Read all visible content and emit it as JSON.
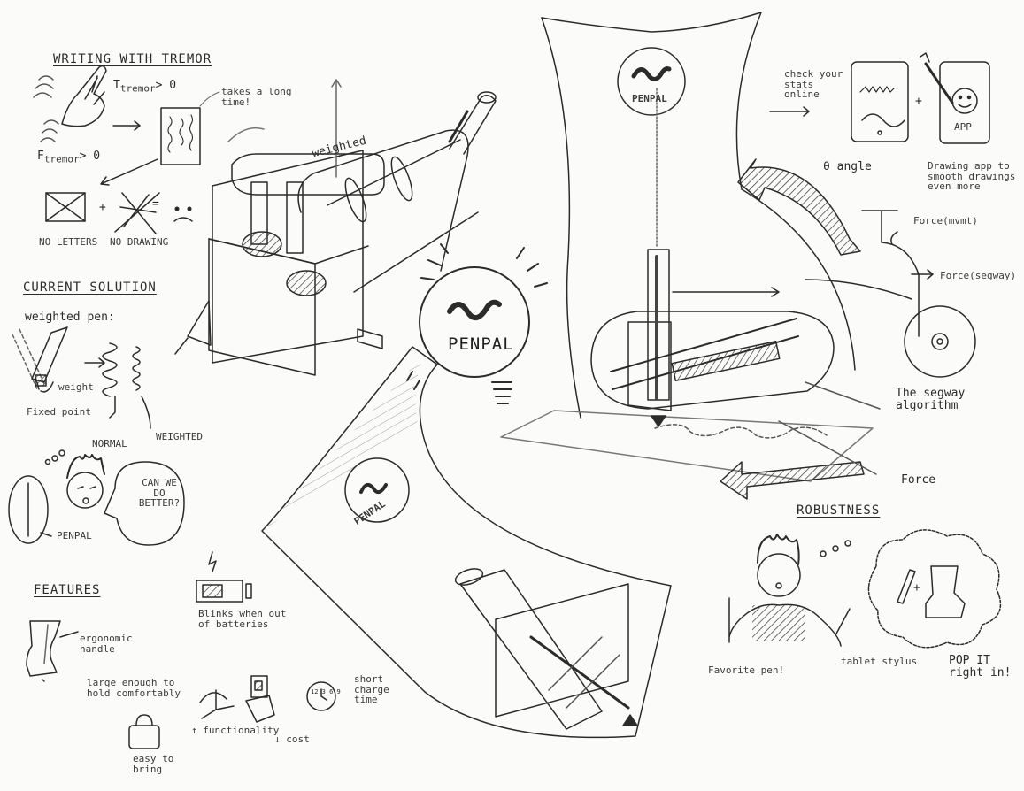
{
  "headings": {
    "writing_with_tremor": "WRITING WITH TREMOR",
    "current_solution": "CURRENT SOLUTION",
    "features": "FEATURES",
    "robustness": "ROBUSTNESS"
  },
  "tremor": {
    "t_tremor": "T",
    "t_tremor_sub": "tremor",
    "t_tremor_suffix": "> 0",
    "f_tremor": "F",
    "f_tremor_sub": "tremor",
    "f_tremor_suffix": "> 0",
    "takes_long": "takes a long time!",
    "no_letters": "NO LETTERS",
    "no_drawing": "NO DRAWING",
    "plus": "+",
    "equals": "="
  },
  "current_solution": {
    "weighted_pen": "weighted pen:",
    "weight": "weight",
    "fixed_point": "Fixed point",
    "normal": "NORMAL",
    "weighted": "WEIGHTED",
    "penpal": "PENPAL",
    "can_we_do_better": "CAN WE DO BETTER?"
  },
  "features": {
    "ergonomic_handle": "ergonomic handle",
    "large_enough": "large enough to hold comfortably",
    "functionality": "↑ functionality",
    "cost": "↓ cost",
    "easy_to_bring": "easy to bring",
    "blinks": "Blinks when out of batteries",
    "short_charge": "short charge time",
    "clock_digits": "12 3 6 9"
  },
  "center": {
    "weighted": "weighted",
    "penpal_logo": "PENPAL"
  },
  "right": {
    "check_stats": "check your stats online",
    "plus": "+",
    "app": "APP",
    "drawing_app": "Drawing app to smooth drawings even more",
    "angle": "θ angle",
    "force_mvmt": "Force(mvmt)",
    "force_segway": "Force(segway)",
    "segway_algorithm": "The segway algorithm",
    "force": "Force"
  },
  "robustness": {
    "favorite_pen": "Favorite pen!",
    "tablet_stylus": "tablet stylus",
    "pop_it": "POP IT right in!",
    "plus": "+"
  },
  "colors": {
    "ink": "#2b2b2b",
    "pencil": "#8f8f8f",
    "paper": "#fbfbfa"
  }
}
